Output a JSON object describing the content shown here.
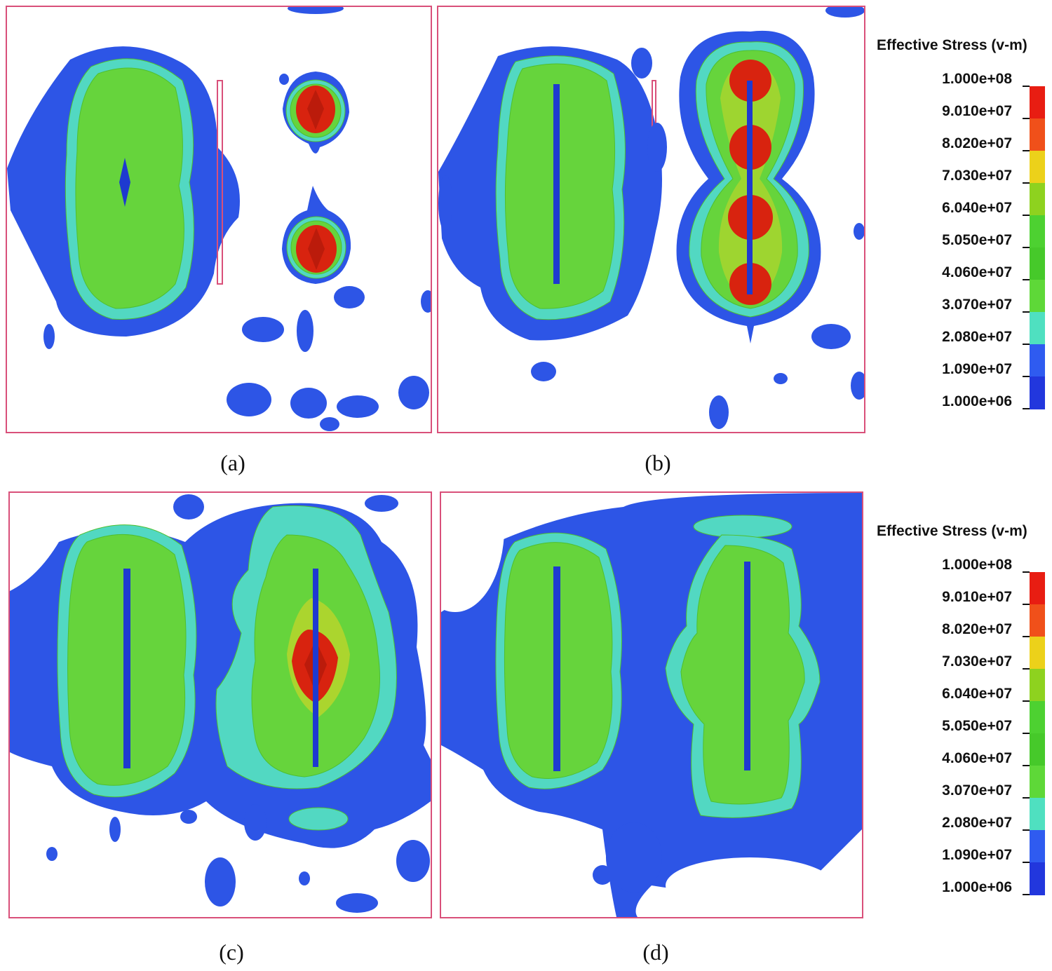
{
  "captions": [
    "(a)",
    "(b)",
    "(c)",
    "(d)"
  ],
  "legend": {
    "title": "Effective Stress (v-m)",
    "labels": [
      "1.000e+08",
      "9.010e+07",
      "8.020e+07",
      "7.030e+07",
      "6.040e+07",
      "5.050e+07",
      "4.060e+07",
      "3.070e+07",
      "2.080e+07",
      "1.090e+07",
      "1.000e+06"
    ],
    "colors": [
      "#e81d12",
      "#f0501a",
      "#ecd11a",
      "#8ed21f",
      "#4dd131",
      "#46c92a",
      "#5ed838",
      "#4fe0c0",
      "#2f5bf0",
      "#2237dd"
    ]
  },
  "colors": {
    "frame": "#d9507a",
    "blue": "#2d55e6",
    "blue_dark": "#1e3ad0",
    "cyan": "#52d8c2",
    "green": "#66d43c",
    "green_dark": "#4fbf2e",
    "yellow": "#e3d622",
    "orange": "#f06a1a",
    "red": "#d8230f",
    "red_dark": "#9e1408"
  }
}
